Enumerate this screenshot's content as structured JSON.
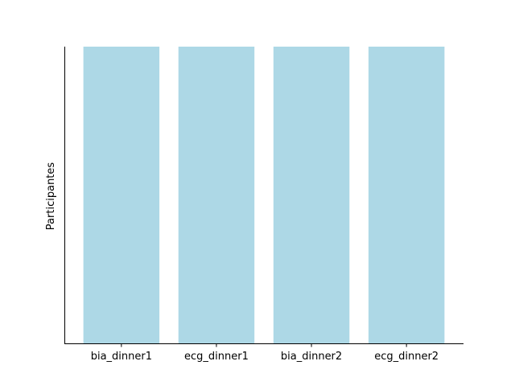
{
  "chart_data": {
    "type": "bar",
    "categories": [
      "bia_dinner1",
      "ecg_dinner1",
      "bia_dinner2",
      "ecg_dinner2"
    ],
    "values": [
      1,
      1,
      1,
      1
    ],
    "ylim": [
      0,
      1
    ],
    "ylabel": "Participantes",
    "xlabel": "",
    "title": "",
    "grid": false,
    "y_ticks_shown": false,
    "bar_color": "#add8e6",
    "axis_color": "#000000"
  }
}
